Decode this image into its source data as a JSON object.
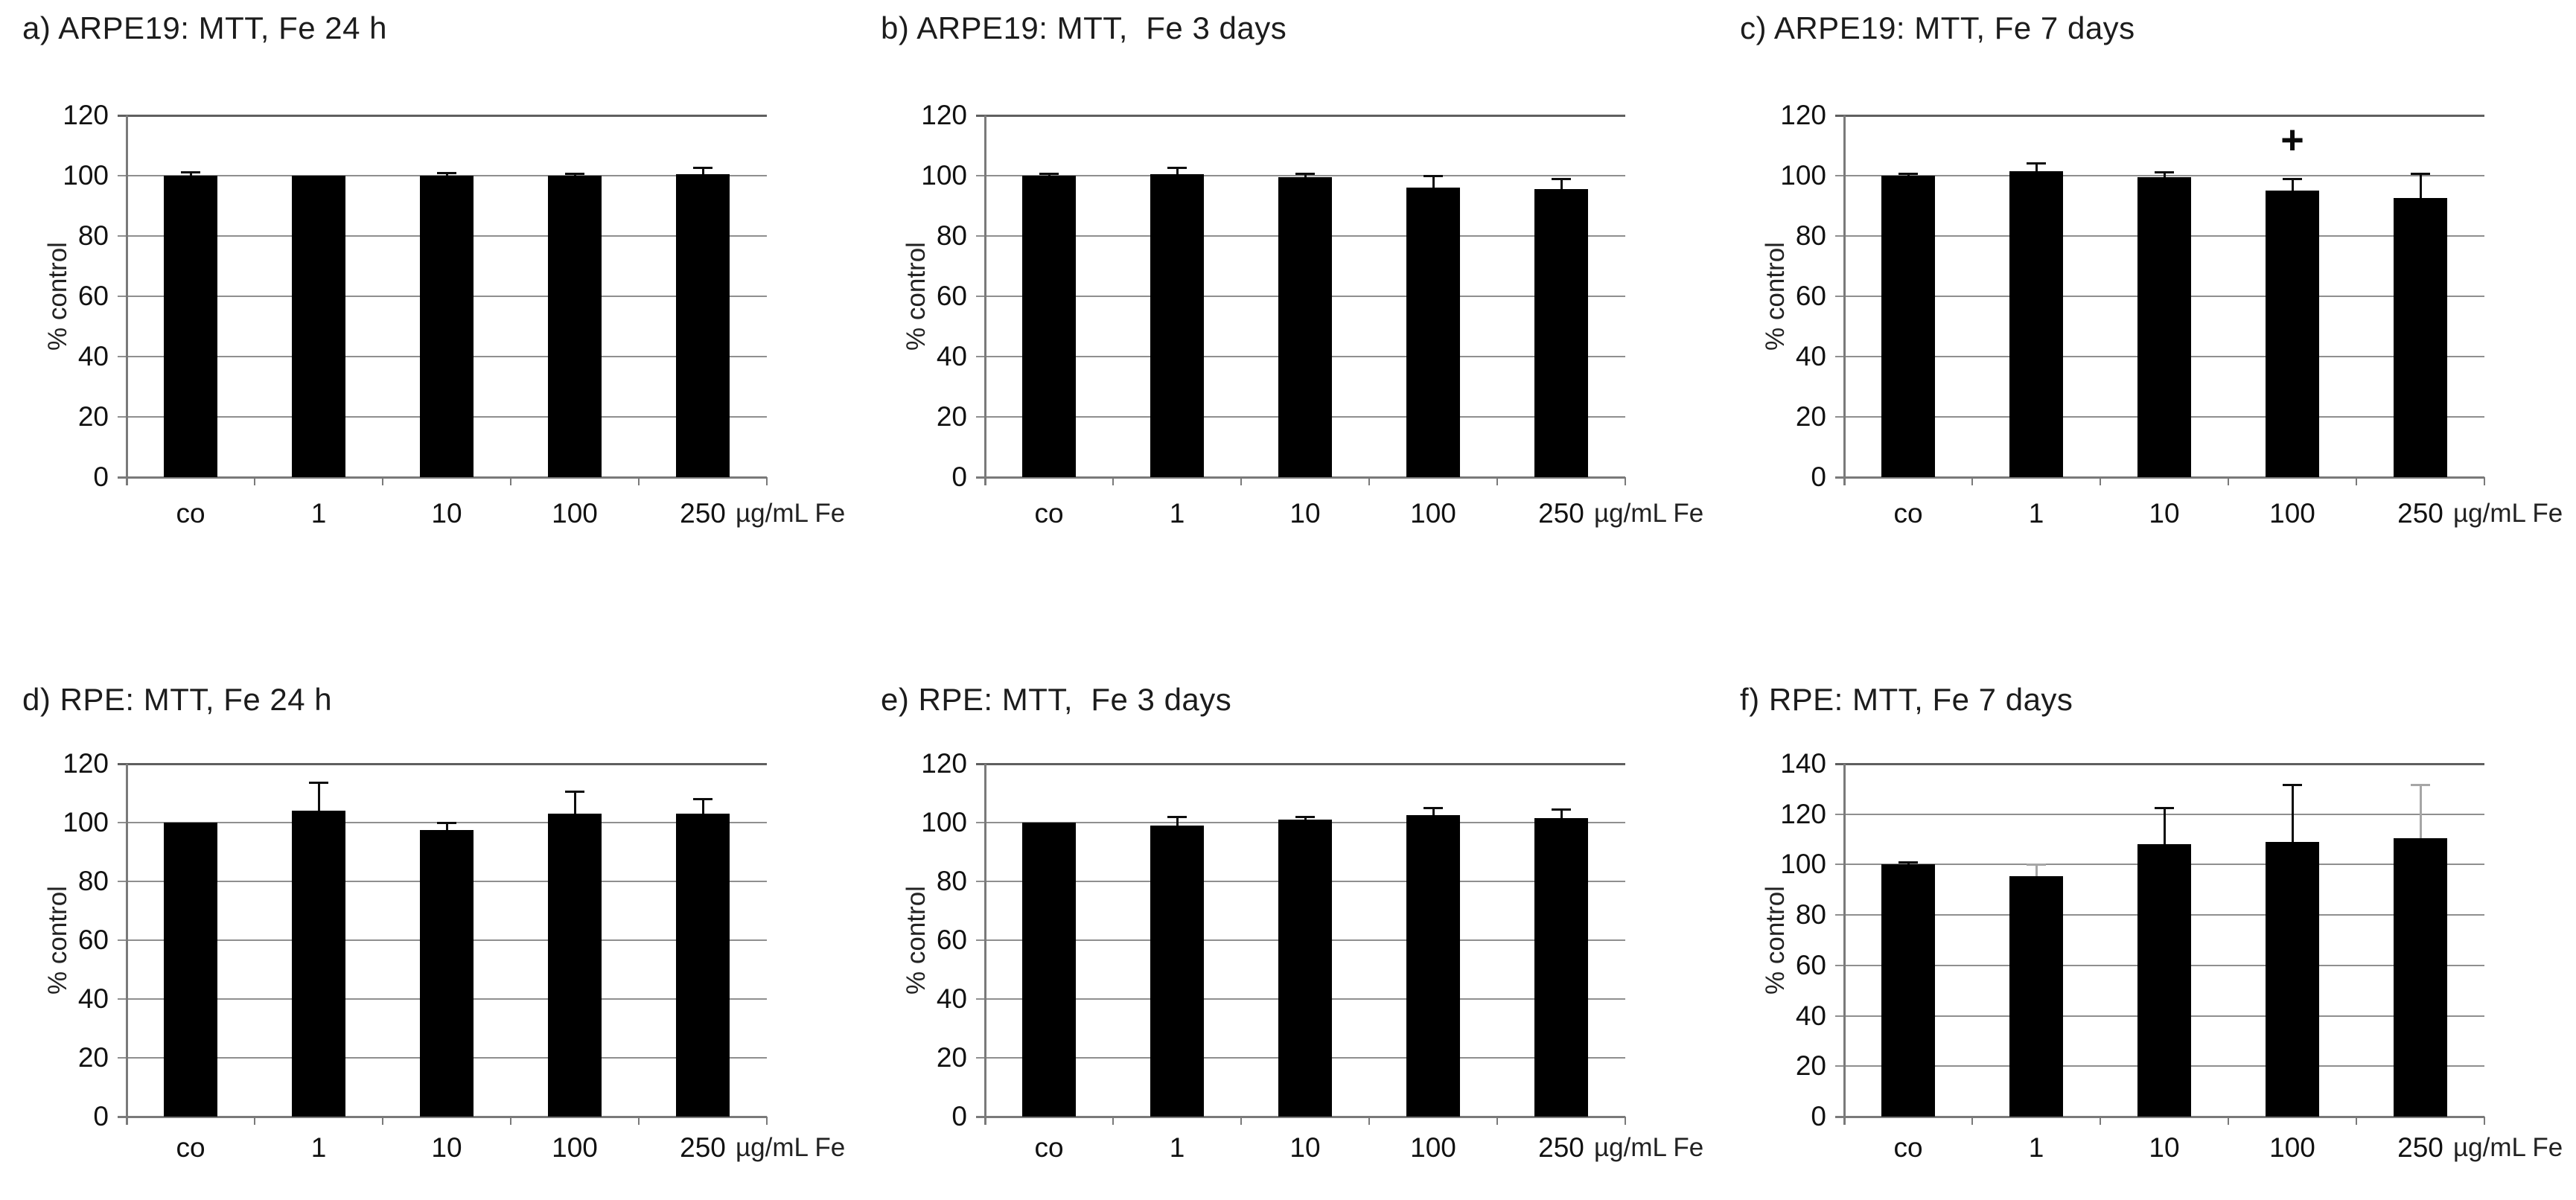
{
  "figure": {
    "style": {
      "background": "#ffffff",
      "bar_color": "#000000",
      "grid_color": "#8f8f8f",
      "axis_color": "#7a7a7a",
      "top_line_color": "#5f5f5f",
      "error_color": "#0d0d0d",
      "error_faint_color": "#a6a6a6",
      "text_color": "#1c1c1c"
    }
  },
  "chart_data": [
    {
      "panel": "a",
      "type": "bar",
      "title": "a) ARPE19: MTT, Fe 24 h",
      "ylabel": "% control",
      "xunit": "µg/mL Fe",
      "categories": [
        "co",
        "1",
        "10",
        "100",
        "250"
      ],
      "values": [
        100,
        100,
        100,
        100,
        100.5
      ],
      "errors": [
        1,
        0,
        0.8,
        0.5,
        2
      ],
      "errors_faint": [
        false,
        false,
        false,
        false,
        false
      ],
      "ylim": [
        0,
        120
      ],
      "ytick_step": 20,
      "annotation": null
    },
    {
      "panel": "b",
      "type": "bar",
      "title": "b) ARPE19: MTT,  Fe 3 days",
      "ylabel": "% control",
      "xunit": "µg/mL Fe",
      "categories": [
        "co",
        "1",
        "10",
        "100",
        "250"
      ],
      "values": [
        100,
        100.5,
        99.5,
        96,
        95.5
      ],
      "errors": [
        0.5,
        2,
        1,
        4,
        3.5
      ],
      "errors_faint": [
        false,
        false,
        false,
        false,
        false
      ],
      "ylim": [
        0,
        120
      ],
      "ytick_step": 20,
      "annotation": null
    },
    {
      "panel": "c",
      "type": "bar",
      "title": "c) ARPE19: MTT, Fe 7 days",
      "ylabel": "% control",
      "xunit": "µg/mL Fe",
      "categories": [
        "co",
        "1",
        "10",
        "100",
        "250"
      ],
      "values": [
        100,
        101.5,
        99.5,
        95,
        92.5
      ],
      "errors": [
        0.5,
        2.5,
        1.5,
        4,
        8
      ],
      "errors_faint": [
        false,
        false,
        false,
        false,
        false
      ],
      "ylim": [
        0,
        120
      ],
      "ytick_step": 20,
      "annotation": {
        "text": "+",
        "index": 3,
        "y": 104
      }
    },
    {
      "panel": "d",
      "type": "bar",
      "title": "d) RPE: MTT, Fe 24 h",
      "ylabel": "% control",
      "xunit": "µg/mL Fe",
      "categories": [
        "co",
        "1",
        "10",
        "100",
        "250"
      ],
      "values": [
        100,
        104,
        97.5,
        103,
        103
      ],
      "errors": [
        0,
        9.5,
        2.5,
        7.5,
        5
      ],
      "errors_faint": [
        false,
        false,
        false,
        false,
        false
      ],
      "ylim": [
        0,
        120
      ],
      "ytick_step": 20,
      "annotation": null
    },
    {
      "panel": "e",
      "type": "bar",
      "title": "e) RPE: MTT,  Fe 3 days",
      "ylabel": "% control",
      "xunit": "µg/mL Fe",
      "categories": [
        "co",
        "1",
        "10",
        "100",
        "250"
      ],
      "values": [
        100,
        99,
        101,
        102.5,
        101.5
      ],
      "errors": [
        0,
        3,
        1,
        2.5,
        3
      ],
      "errors_faint": [
        false,
        false,
        false,
        false,
        false
      ],
      "ylim": [
        0,
        120
      ],
      "ytick_step": 20,
      "annotation": null
    },
    {
      "panel": "f",
      "type": "bar",
      "title": "f) RPE: MTT, Fe 7 days",
      "ylabel": "% control",
      "xunit": "µg/mL Fe",
      "categories": [
        "co",
        "1",
        "10",
        "100",
        "250"
      ],
      "values": [
        100,
        95.5,
        108,
        109,
        110.5
      ],
      "errors": [
        1,
        4.5,
        14.5,
        22.5,
        21
      ],
      "errors_faint": [
        false,
        true,
        false,
        false,
        true
      ],
      "ylim": [
        0,
        140
      ],
      "ytick_step": 20,
      "annotation": null
    }
  ]
}
